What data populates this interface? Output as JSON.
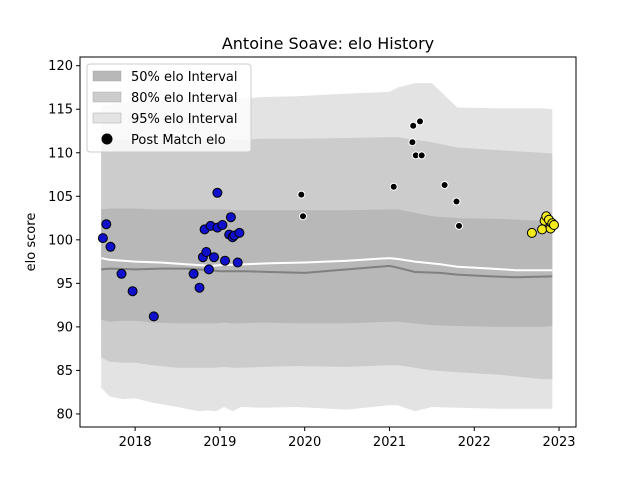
{
  "chart_data": {
    "type": "scatter",
    "title": "Antoine Soave: elo History",
    "xlabel": "",
    "ylabel": "elo score",
    "xlim": [
      2017.35,
      2023.2
    ],
    "ylim": [
      78.5,
      121
    ],
    "x_ticks": [
      2018,
      2019,
      2020,
      2021,
      2022,
      2023
    ],
    "y_ticks": [
      80,
      85,
      90,
      95,
      100,
      105,
      110,
      115,
      120
    ],
    "grid": false,
    "legend_position": "upper-left",
    "legend": [
      {
        "label": "50% elo Interval",
        "kind": "band-50"
      },
      {
        "label": "80% elo Interval",
        "kind": "band-80"
      },
      {
        "label": "95% elo Interval",
        "kind": "band-95"
      },
      {
        "label": "Post Match elo",
        "kind": "marker"
      }
    ],
    "colors": {
      "band_95": "#e3e3e3",
      "band_80": "#cccccc",
      "band_50": "#b8b8b8",
      "mean_line": "#ffffff",
      "median_line": "#808080",
      "point_blue": "#1010cc",
      "point_black": "#000000",
      "point_yellow": "#f2ea1a",
      "marker_edge": "#000000"
    },
    "bands": {
      "x": [
        2017.6,
        2017.7,
        2017.85,
        2018.0,
        2018.2,
        2018.5,
        2018.75,
        2018.85,
        2018.95,
        2019.05,
        2019.15,
        2019.25,
        2019.5,
        2019.9,
        2020.5,
        2021.0,
        2021.1,
        2021.3,
        2021.5,
        2021.8,
        2022.3,
        2022.8,
        2022.92
      ],
      "upper_95": [
        115.3,
        115.5,
        115.7,
        115.8,
        115.9,
        116.0,
        116.1,
        116.1,
        116.2,
        116.1,
        116.2,
        116.2,
        116.4,
        116.5,
        116.8,
        117.0,
        117.5,
        118.0,
        118.0,
        115.2,
        115.1,
        115.1,
        115.0
      ],
      "lower_95": [
        83.0,
        82.0,
        81.7,
        81.8,
        81.3,
        80.8,
        80.3,
        80.4,
        80.3,
        80.8,
        80.3,
        80.8,
        80.7,
        80.8,
        80.5,
        81.0,
        81.0,
        80.3,
        80.8,
        80.7,
        80.6,
        80.6,
        80.6
      ],
      "upper_80": [
        111.3,
        111.5,
        111.5,
        111.5,
        111.5,
        111.5,
        111.5,
        111.5,
        111.5,
        111.5,
        111.5,
        111.5,
        111.6,
        111.6,
        111.7,
        111.8,
        111.8,
        111.5,
        111.2,
        110.6,
        110.3,
        110.0,
        109.9
      ],
      "lower_80": [
        86.5,
        86.0,
        85.9,
        85.9,
        85.6,
        85.3,
        85.3,
        85.3,
        85.3,
        85.4,
        85.3,
        85.3,
        85.4,
        85.5,
        85.4,
        85.6,
        85.6,
        85.3,
        85.0,
        84.8,
        84.5,
        84.0,
        84.0
      ],
      "upper_50": [
        103.5,
        103.6,
        103.6,
        103.6,
        103.5,
        103.5,
        103.5,
        103.5,
        103.5,
        103.5,
        103.4,
        103.4,
        103.4,
        103.4,
        103.4,
        103.5,
        103.5,
        103.1,
        102.7,
        102.5,
        102.4,
        102.2,
        102.2
      ],
      "lower_50": [
        90.8,
        90.6,
        90.7,
        90.7,
        90.5,
        90.4,
        90.4,
        90.4,
        90.4,
        90.5,
        90.4,
        90.4,
        90.5,
        90.4,
        90.4,
        90.6,
        90.6,
        90.4,
        90.2,
        90.1,
        90.0,
        90.0,
        90.1
      ]
    },
    "mean_line": {
      "x": [
        2017.6,
        2017.7,
        2018.0,
        2018.3,
        2018.6,
        2018.9,
        2019.0,
        2019.3,
        2019.6,
        2020.0,
        2020.5,
        2021.0,
        2021.1,
        2021.3,
        2021.6,
        2021.8,
        2022.2,
        2022.5,
        2022.92
      ],
      "y": [
        97.9,
        97.7,
        97.5,
        97.4,
        97.2,
        97.0,
        97.1,
        97.2,
        97.3,
        97.4,
        97.6,
        97.9,
        97.8,
        97.5,
        97.2,
        96.9,
        96.7,
        96.5,
        96.5
      ]
    },
    "median_line": {
      "x": [
        2017.6,
        2017.7,
        2018.0,
        2018.3,
        2018.6,
        2018.9,
        2019.0,
        2019.3,
        2019.6,
        2020.0,
        2020.5,
        2021.0,
        2021.1,
        2021.3,
        2021.6,
        2021.8,
        2022.2,
        2022.5,
        2022.92
      ],
      "y": [
        96.6,
        96.7,
        96.6,
        96.7,
        96.7,
        96.5,
        96.4,
        96.4,
        96.3,
        96.2,
        96.6,
        97.0,
        96.8,
        96.3,
        96.2,
        96.0,
        95.8,
        95.7,
        95.8
      ]
    },
    "series": [
      {
        "color_key": "point_blue",
        "x": [
          2017.62,
          2017.66,
          2017.71,
          2017.84,
          2017.97,
          2018.22,
          2018.69,
          2018.76,
          2018.8,
          2018.82,
          2018.84,
          2018.87,
          2018.89,
          2018.93,
          2018.97,
          2019.03,
          2019.06,
          2019.11,
          2019.13,
          2019.15,
          2019.17,
          2019.21,
          2019.23
        ],
        "y": [
          100.2,
          101.8,
          99.2,
          96.1,
          94.1,
          91.2,
          96.1,
          94.5,
          98.0,
          101.2,
          98.6,
          96.6,
          101.6,
          98.0,
          101.4,
          101.7,
          97.6,
          100.6,
          102.6,
          100.3,
          100.5,
          97.4,
          100.8
        ]
      },
      {
        "color_key": "point_blue",
        "x": [
          2018.97
        ],
        "y": [
          105.4
        ]
      },
      {
        "color_key": "point_black",
        "x": [
          2019.96,
          2019.98,
          2021.05,
          2021.27,
          2021.28,
          2021.31,
          2021.36,
          2021.38,
          2021.65,
          2021.79,
          2021.82
        ],
        "y": [
          105.2,
          102.7,
          106.1,
          111.2,
          113.1,
          109.7,
          113.6,
          109.7,
          106.3,
          104.4,
          101.6
        ]
      },
      {
        "color_key": "point_yellow",
        "x": [
          2022.68,
          2022.8,
          2022.83,
          2022.85,
          2022.88,
          2022.9,
          2022.92,
          2022.94
        ],
        "y": [
          100.8,
          101.2,
          102.2,
          102.7,
          102.3,
          101.3,
          101.9,
          101.7
        ]
      }
    ]
  }
}
